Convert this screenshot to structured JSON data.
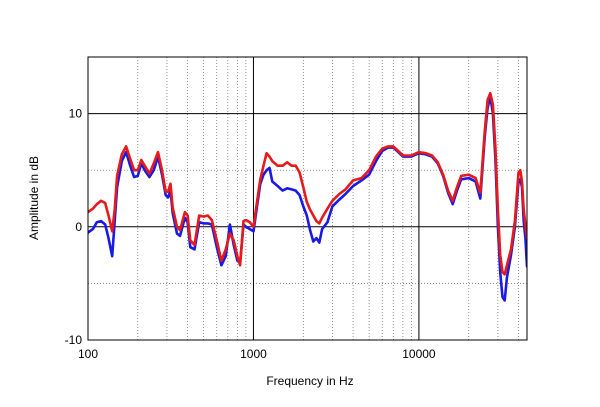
{
  "chart_data": {
    "type": "line",
    "xscale": "log",
    "xlim": [
      100,
      45000
    ],
    "ylim": [
      -10,
      15
    ],
    "xlabel": "Frequency in Hz",
    "ylabel": "Amplitude in dB",
    "x_ticks": [
      {
        "value": 100,
        "label": "100"
      },
      {
        "value": 1000,
        "label": "1000"
      },
      {
        "value": 10000,
        "label": "10000"
      }
    ],
    "y_ticks": [
      {
        "value": 10,
        "label": "10"
      },
      {
        "value": 0,
        "label": "0"
      },
      {
        "value": -10,
        "label": "-10"
      }
    ],
    "grid": true,
    "legend": "none",
    "series": [
      {
        "color": "#1a1ae6",
        "points": [
          [
            100,
            -0.5
          ],
          [
            107,
            -0.2
          ],
          [
            113,
            0.4
          ],
          [
            120,
            0.5
          ],
          [
            127,
            0.2
          ],
          [
            133,
            -1.0
          ],
          [
            140,
            -2.6
          ],
          [
            145,
            0.5
          ],
          [
            150,
            3.5
          ],
          [
            160,
            5.8
          ],
          [
            170,
            6.6
          ],
          [
            180,
            5.4
          ],
          [
            190,
            4.4
          ],
          [
            200,
            4.5
          ],
          [
            210,
            5.6
          ],
          [
            220,
            5.0
          ],
          [
            235,
            4.4
          ],
          [
            250,
            5.0
          ],
          [
            265,
            6.2
          ],
          [
            280,
            4.6
          ],
          [
            295,
            2.8
          ],
          [
            305,
            2.6
          ],
          [
            315,
            3.2
          ],
          [
            325,
            1.2
          ],
          [
            345,
            -0.6
          ],
          [
            360,
            -0.8
          ],
          [
            385,
            0.8
          ],
          [
            400,
            0.4
          ],
          [
            415,
            -1.8
          ],
          [
            440,
            -2.0
          ],
          [
            470,
            0.4
          ],
          [
            500,
            0.3
          ],
          [
            530,
            0.3
          ],
          [
            560,
            0.2
          ],
          [
            600,
            -1.8
          ],
          [
            640,
            -3.4
          ],
          [
            680,
            -2.6
          ],
          [
            720,
            0.2
          ],
          [
            760,
            -1.6
          ],
          [
            800,
            -3.0
          ],
          [
            830,
            -3.2
          ],
          [
            870,
            0.2
          ],
          [
            900,
            0.0
          ],
          [
            950,
            -0.2
          ],
          [
            1000,
            -0.4
          ],
          [
            1050,
            1.8
          ],
          [
            1100,
            3.8
          ],
          [
            1150,
            4.6
          ],
          [
            1200,
            5.0
          ],
          [
            1250,
            5.2
          ],
          [
            1300,
            4.0
          ],
          [
            1400,
            3.6
          ],
          [
            1500,
            3.2
          ],
          [
            1600,
            3.4
          ],
          [
            1700,
            3.3
          ],
          [
            1800,
            3.2
          ],
          [
            1900,
            2.8
          ],
          [
            2000,
            1.8
          ],
          [
            2100,
            1.0
          ],
          [
            2200,
            -0.3
          ],
          [
            2300,
            -1.3
          ],
          [
            2400,
            -1.0
          ],
          [
            2500,
            -1.4
          ],
          [
            2600,
            -0.2
          ],
          [
            2800,
            0.4
          ],
          [
            3000,
            1.8
          ],
          [
            3300,
            2.4
          ],
          [
            3600,
            2.9
          ],
          [
            4000,
            3.6
          ],
          [
            4500,
            4.1
          ],
          [
            5000,
            4.6
          ],
          [
            5500,
            5.8
          ],
          [
            6000,
            6.7
          ],
          [
            6500,
            7.0
          ],
          [
            7000,
            7.0
          ],
          [
            7500,
            6.6
          ],
          [
            8000,
            6.2
          ],
          [
            9000,
            6.2
          ],
          [
            10000,
            6.5
          ],
          [
            11000,
            6.4
          ],
          [
            12000,
            6.2
          ],
          [
            13000,
            5.6
          ],
          [
            14000,
            4.5
          ],
          [
            15000,
            3.0
          ],
          [
            16000,
            2.0
          ],
          [
            17000,
            3.2
          ],
          [
            18000,
            4.2
          ],
          [
            20000,
            4.3
          ],
          [
            22000,
            4.0
          ],
          [
            23500,
            2.5
          ],
          [
            25000,
            8.0
          ],
          [
            26000,
            10.5
          ],
          [
            27000,
            11.5
          ],
          [
            28000,
            10.0
          ],
          [
            29000,
            6.0
          ],
          [
            30000,
            0.0
          ],
          [
            31000,
            -4.0
          ],
          [
            32000,
            -6.2
          ],
          [
            33000,
            -6.5
          ],
          [
            34000,
            -4.5
          ],
          [
            36000,
            -2.5
          ],
          [
            38000,
            0.0
          ],
          [
            40000,
            4.0
          ],
          [
            41000,
            4.2
          ],
          [
            42000,
            3.5
          ],
          [
            43000,
            0.5
          ],
          [
            44000,
            -1.0
          ],
          [
            45000,
            -3.5
          ]
        ]
      },
      {
        "color": "#e61a1a",
        "points": [
          [
            100,
            1.3
          ],
          [
            107,
            1.6
          ],
          [
            113,
            2.0
          ],
          [
            120,
            2.3
          ],
          [
            127,
            2.1
          ],
          [
            133,
            1.0
          ],
          [
            140,
            -0.4
          ],
          [
            145,
            1.5
          ],
          [
            150,
            4.5
          ],
          [
            160,
            6.4
          ],
          [
            170,
            7.1
          ],
          [
            180,
            6.0
          ],
          [
            190,
            5.0
          ],
          [
            200,
            5.0
          ],
          [
            210,
            5.9
          ],
          [
            220,
            5.4
          ],
          [
            235,
            4.7
          ],
          [
            250,
            5.6
          ],
          [
            265,
            6.6
          ],
          [
            280,
            5.0
          ],
          [
            295,
            3.1
          ],
          [
            305,
            3.1
          ],
          [
            315,
            3.8
          ],
          [
            325,
            1.7
          ],
          [
            345,
            0.0
          ],
          [
            360,
            -0.3
          ],
          [
            385,
            1.3
          ],
          [
            400,
            1.0
          ],
          [
            415,
            -1.2
          ],
          [
            440,
            -1.6
          ],
          [
            470,
            1.0
          ],
          [
            500,
            0.9
          ],
          [
            530,
            1.0
          ],
          [
            560,
            0.6
          ],
          [
            600,
            -1.2
          ],
          [
            640,
            -3.0
          ],
          [
            680,
            -2.0
          ],
          [
            720,
            -0.6
          ],
          [
            760,
            -1.2
          ],
          [
            800,
            -2.6
          ],
          [
            830,
            -3.4
          ],
          [
            870,
            0.5
          ],
          [
            900,
            0.6
          ],
          [
            950,
            0.4
          ],
          [
            1000,
            0.0
          ],
          [
            1050,
            2.2
          ],
          [
            1100,
            4.2
          ],
          [
            1150,
            5.4
          ],
          [
            1200,
            6.5
          ],
          [
            1250,
            6.2
          ],
          [
            1300,
            5.8
          ],
          [
            1400,
            5.4
          ],
          [
            1500,
            5.4
          ],
          [
            1600,
            5.7
          ],
          [
            1700,
            5.4
          ],
          [
            1800,
            5.4
          ],
          [
            1900,
            4.8
          ],
          [
            2000,
            3.5
          ],
          [
            2100,
            2.2
          ],
          [
            2200,
            1.5
          ],
          [
            2300,
            1.0
          ],
          [
            2400,
            0.5
          ],
          [
            2500,
            0.3
          ],
          [
            2600,
            0.8
          ],
          [
            2800,
            1.6
          ],
          [
            3000,
            2.3
          ],
          [
            3300,
            2.9
          ],
          [
            3600,
            3.3
          ],
          [
            4000,
            4.1
          ],
          [
            4500,
            4.3
          ],
          [
            5000,
            5.0
          ],
          [
            5500,
            6.2
          ],
          [
            6000,
            6.9
          ],
          [
            6500,
            7.1
          ],
          [
            7000,
            7.1
          ],
          [
            7500,
            6.7
          ],
          [
            8000,
            6.3
          ],
          [
            9000,
            6.3
          ],
          [
            10000,
            6.6
          ],
          [
            11000,
            6.5
          ],
          [
            12000,
            6.3
          ],
          [
            13000,
            5.7
          ],
          [
            14000,
            4.6
          ],
          [
            15000,
            3.2
          ],
          [
            16000,
            2.3
          ],
          [
            17000,
            3.5
          ],
          [
            18000,
            4.5
          ],
          [
            20000,
            4.6
          ],
          [
            22000,
            4.3
          ],
          [
            23500,
            3.0
          ],
          [
            25000,
            8.5
          ],
          [
            26000,
            11.2
          ],
          [
            27000,
            11.8
          ],
          [
            28000,
            10.8
          ],
          [
            29000,
            7.0
          ],
          [
            30000,
            1.5
          ],
          [
            31000,
            -2.5
          ],
          [
            32000,
            -4.0
          ],
          [
            33000,
            -4.2
          ],
          [
            34000,
            -3.4
          ],
          [
            36000,
            -2.0
          ],
          [
            38000,
            0.5
          ],
          [
            40000,
            4.8
          ],
          [
            41000,
            5.0
          ],
          [
            42000,
            4.0
          ],
          [
            43000,
            1.5
          ],
          [
            44000,
            0.2
          ],
          [
            45000,
            -1.0
          ]
        ]
      }
    ]
  }
}
